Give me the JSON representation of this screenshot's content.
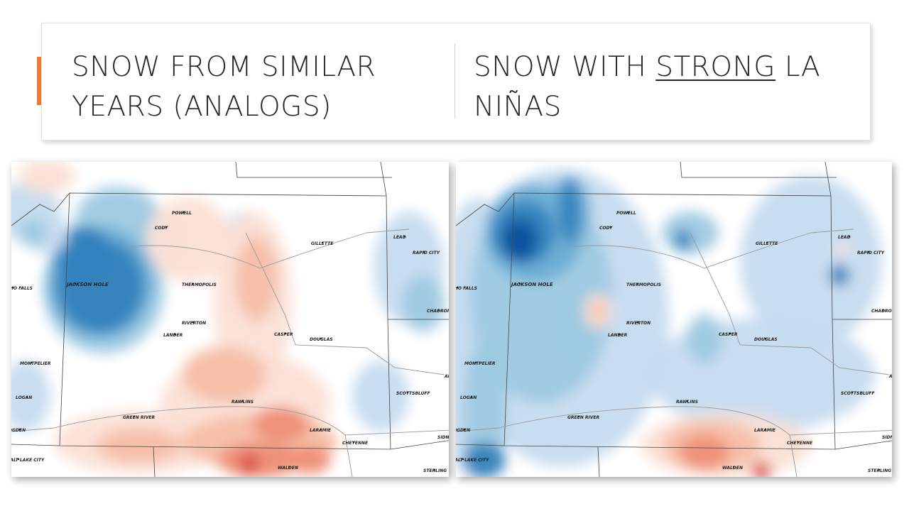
{
  "header": {
    "left_title": "SNOW FROM SIMILAR YEARS (ANALOGS)",
    "right_title": {
      "before": "SNOW WITH ",
      "emphasis": "STRONG",
      "after": " LA NIÑAS"
    }
  },
  "maps": [
    {
      "cities": [
        "POWELL",
        "CODY",
        "JACKSON HOLE",
        "IDAHO FALLS",
        "THERMOPOLIS",
        "RIVERTON",
        "LANDER",
        "CASPER",
        "DOUGLAS",
        "GILLETTE",
        "LEAD",
        "RAPID CITY",
        "CHADRON",
        "MONTPELIER",
        "LOGAN",
        "OGDEN",
        "SALT LAKE CITY",
        "GREEN RIVER",
        "RAWLINS",
        "LARAMIE",
        "CHEYENNE",
        "SCOTTSBLUFF",
        "ALLIANCE",
        "WALDEN",
        "STERLING",
        "SIDNEY"
      ]
    },
    {
      "cities": [
        "POWELL",
        "CODY",
        "JACKSON HOLE",
        "IDAHO FALLS",
        "THERMOPOLIS",
        "RIVERTON",
        "LANDER",
        "CASPER",
        "DOUGLAS",
        "GILLETTE",
        "LEAD",
        "RAPID CITY",
        "CHADRON",
        "MONTPELIER",
        "LOGAN",
        "OGDEN",
        "SALT LAKE CITY",
        "GREEN RIVER",
        "RAWLINS",
        "LARAMIE",
        "CHEYENNE",
        "SCOTTSBLUFF",
        "ALLIANCE",
        "WALDEN",
        "STERLING",
        "SIDNEY"
      ]
    }
  ]
}
